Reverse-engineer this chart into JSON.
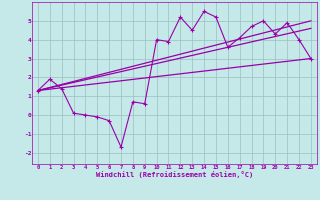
{
  "bg_color": "#c5e8e8",
  "line_color": "#9900aa",
  "grid_color": "#9bbfbf",
  "xlabel": "Windchill (Refroidissement éolien,°C)",
  "xlim": [
    -0.5,
    23.5
  ],
  "ylim": [
    -2.6,
    6.0
  ],
  "yticks": [
    -2,
    -1,
    0,
    1,
    2,
    3,
    4,
    5
  ],
  "xticks": [
    0,
    1,
    2,
    3,
    4,
    5,
    6,
    7,
    8,
    9,
    10,
    11,
    12,
    13,
    14,
    15,
    16,
    17,
    18,
    19,
    20,
    21,
    22,
    23
  ],
  "data_x": [
    0,
    1,
    2,
    3,
    4,
    5,
    6,
    7,
    8,
    9,
    10,
    11,
    12,
    13,
    14,
    15,
    16,
    17,
    18,
    19,
    20,
    21,
    22,
    23
  ],
  "data_y": [
    1.3,
    1.9,
    1.4,
    0.1,
    0.0,
    -0.1,
    -0.3,
    -1.7,
    0.7,
    0.6,
    4.0,
    3.9,
    5.2,
    4.5,
    5.5,
    5.2,
    3.6,
    4.1,
    4.7,
    5.0,
    4.3,
    4.9,
    4.0,
    3.0
  ],
  "line1_x": [
    0,
    23
  ],
  "line1_y": [
    1.3,
    5.0
  ],
  "line2_x": [
    0,
    23
  ],
  "line2_y": [
    1.3,
    4.6
  ],
  "line3_x": [
    0,
    23
  ],
  "line3_y": [
    1.3,
    3.0
  ]
}
